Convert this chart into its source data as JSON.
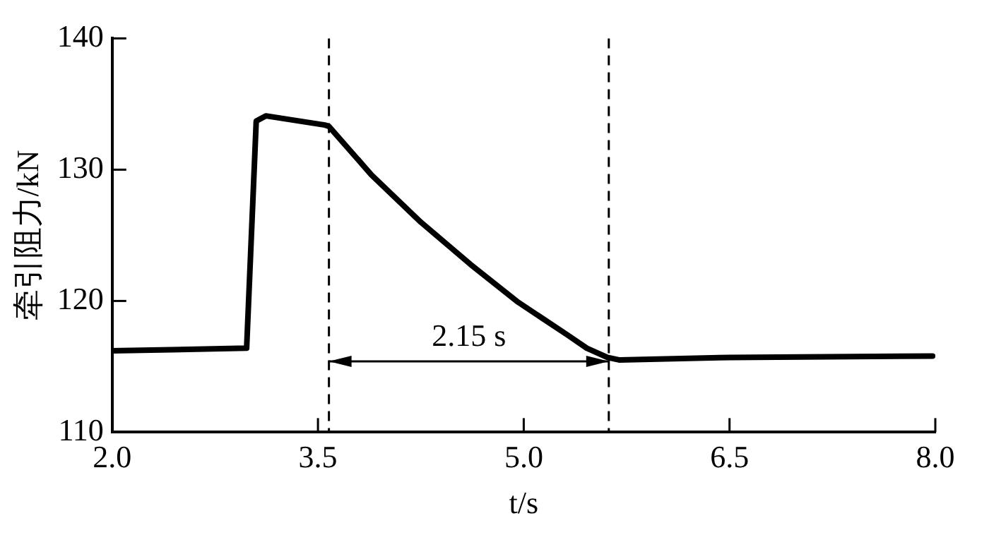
{
  "chart_data": {
    "type": "line",
    "xlabel": "t/s",
    "ylabel": "牵引阻力/kN",
    "xlim": [
      2,
      8
    ],
    "xticks": [
      {
        "value": 2,
        "label": "2.0"
      },
      {
        "value": 3.5,
        "label": "3.5"
      },
      {
        "value": 5,
        "label": "5.0"
      },
      {
        "value": 6.5,
        "label": "6.5"
      },
      {
        "value": 8,
        "label": "8.0"
      }
    ],
    "ylim": [
      110,
      140
    ],
    "yticks": [
      110,
      120,
      130,
      140
    ],
    "series": [
      {
        "color": "#000000",
        "x": [
          2.0,
          2.98,
          3.05,
          3.12,
          3.55,
          3.58,
          3.89,
          4.25,
          4.61,
          4.96,
          5.32,
          5.46,
          5.61,
          5.7,
          6.5,
          7.98
        ],
        "values": [
          116.2,
          116.4,
          133.7,
          134.1,
          133.4,
          133.3,
          129.6,
          126.0,
          122.8,
          119.9,
          117.4,
          116.4,
          115.7,
          115.5,
          115.7,
          115.8
        ]
      }
    ],
    "ref_lines": [
      {
        "axis": "x",
        "value": 3.58,
        "color": "#000000",
        "line_style": "dashed"
      },
      {
        "axis": "x",
        "value": 5.62,
        "color": "#000000",
        "line_style": "dashed"
      }
    ],
    "annotations": [
      "2.15 s"
    ],
    "grid": false,
    "legend": false,
    "marker": "none",
    "line_style": "solid"
  }
}
